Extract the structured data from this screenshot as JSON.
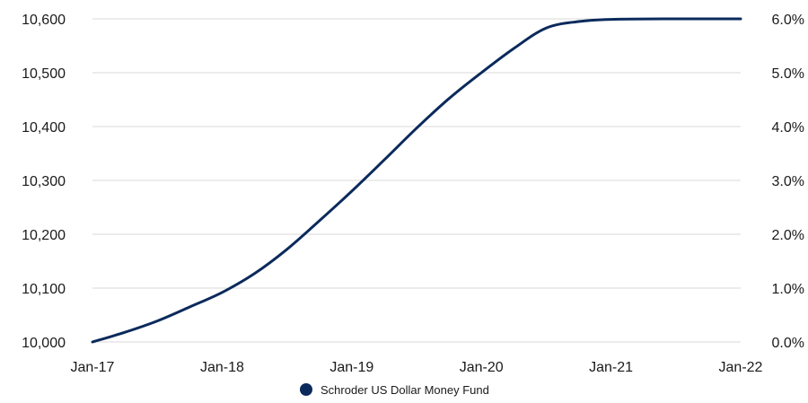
{
  "chart_data": {
    "type": "line",
    "title": "",
    "xlabel": "",
    "ylabel": "",
    "x_ticks": [
      "Jan-17",
      "Jan-18",
      "Jan-19",
      "Jan-20",
      "Jan-21",
      "Jan-22"
    ],
    "y_left_ticks": [
      "10,000",
      "10,100",
      "10,200",
      "10,300",
      "10,400",
      "10,500",
      "10,600"
    ],
    "y_right_ticks": [
      "0.0%",
      "1.0%",
      "2.0%",
      "3.0%",
      "4.0%",
      "5.0%",
      "6.0%"
    ],
    "ylim": [
      10000,
      10600
    ],
    "y_right_lim": [
      0,
      6
    ],
    "xlim": [
      "2017-01",
      "2022-01"
    ],
    "grid": "horizontal",
    "legend_position": "bottom",
    "series": [
      {
        "name": "Schroder US Dollar Money Fund",
        "color": "#0b2a5c",
        "points": [
          [
            "2017-01",
            10000
          ],
          [
            "2017-04",
            10018
          ],
          [
            "2017-07",
            10039
          ],
          [
            "2017-10",
            10065
          ],
          [
            "2018-01",
            10092
          ],
          [
            "2018-04",
            10127
          ],
          [
            "2018-07",
            10172
          ],
          [
            "2018-10",
            10225
          ],
          [
            "2019-01",
            10280
          ],
          [
            "2019-04",
            10338
          ],
          [
            "2019-07",
            10397
          ],
          [
            "2019-10",
            10452
          ],
          [
            "2020-01",
            10500
          ],
          [
            "2020-04",
            10545
          ],
          [
            "2020-07",
            10583
          ],
          [
            "2020-10",
            10595
          ],
          [
            "2021-01",
            10599
          ],
          [
            "2021-07",
            10600
          ],
          [
            "2022-01",
            10600
          ]
        ]
      }
    ]
  }
}
